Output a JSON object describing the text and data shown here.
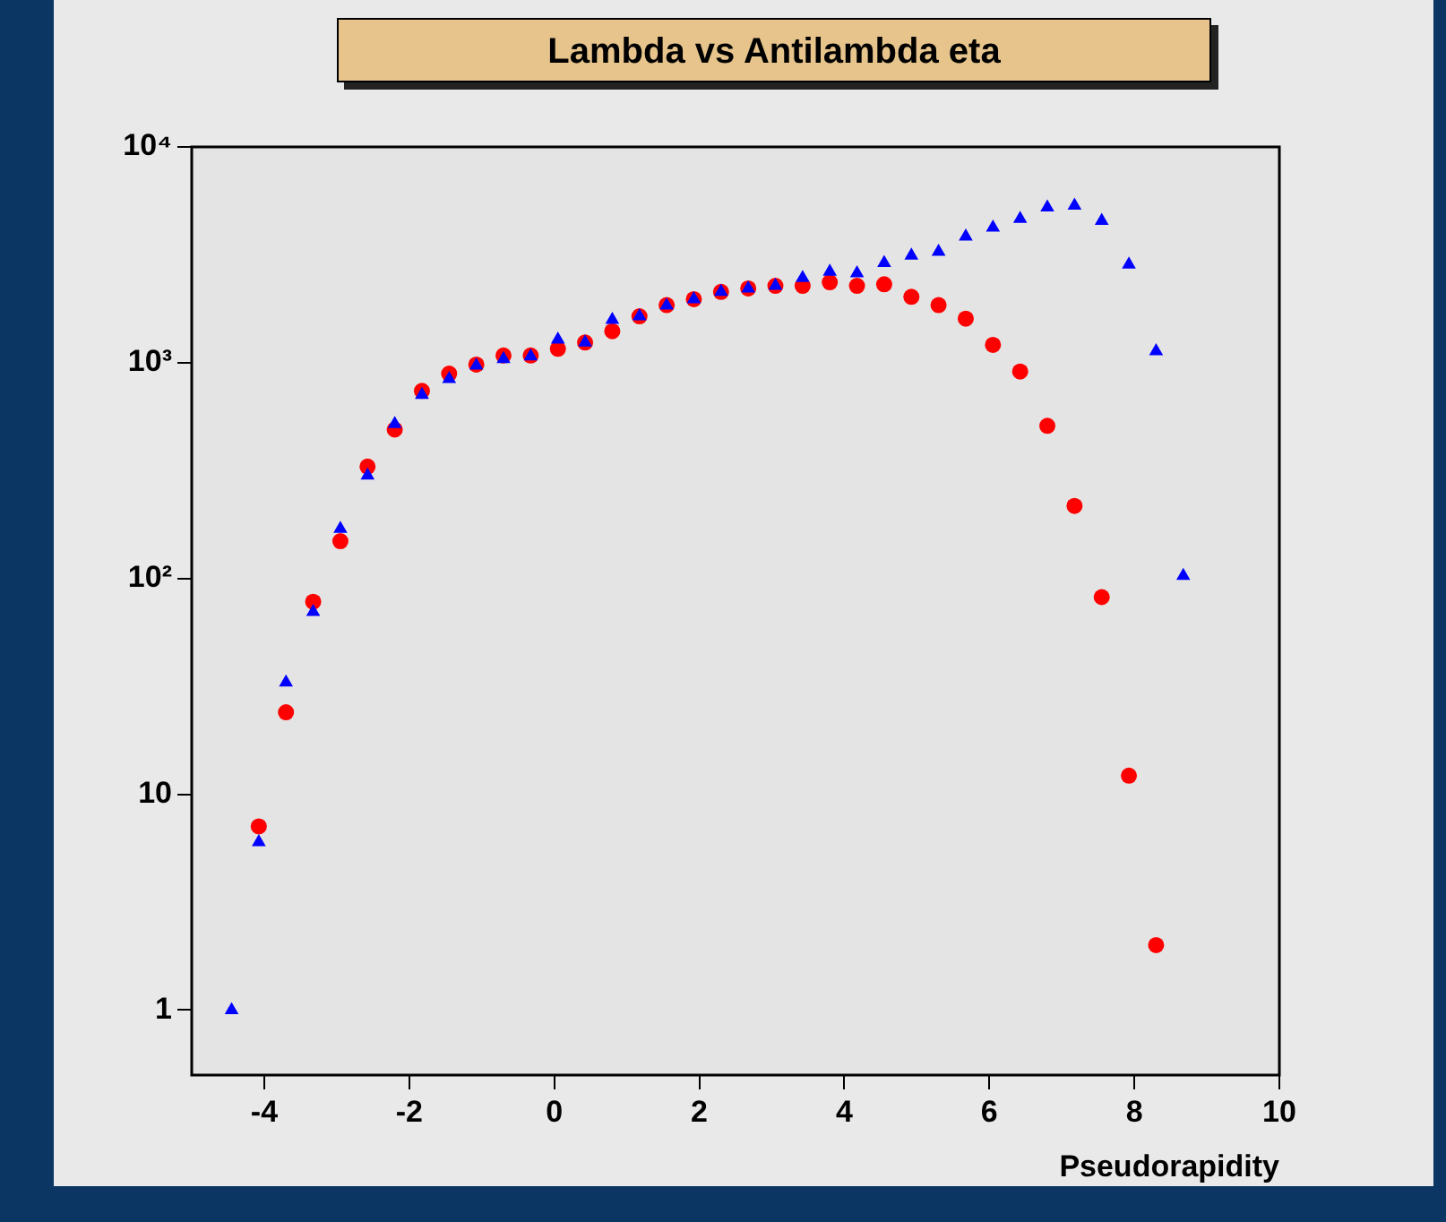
{
  "chart_data": {
    "type": "scatter",
    "title": "Lambda vs Antilambda eta",
    "xlabel": "Pseudorapidity",
    "x": [
      -4.45,
      -4.075,
      -3.7,
      -3.325,
      -2.95,
      -2.575,
      -2.2,
      -1.825,
      -1.45,
      -1.075,
      -0.7,
      -0.325,
      0.05,
      0.425,
      0.8,
      1.175,
      1.55,
      1.925,
      2.3,
      2.675,
      3.05,
      3.425,
      3.8,
      4.175,
      4.55,
      4.925,
      5.3,
      5.675,
      6.05,
      6.425,
      6.8,
      7.175,
      7.55,
      7.925,
      8.3,
      8.675
    ],
    "series": [
      {
        "color": "#0000ff",
        "marker": "triangle",
        "values": [
          1.0,
          6,
          33,
          70,
          170,
          300,
          520,
          710,
          840,
          970,
          1040,
          1070,
          1280,
          1240,
          1580,
          1640,
          1840,
          1970,
          2130,
          2210,
          2270,
          2470,
          2640,
          2600,
          2900,
          3140,
          3270,
          3840,
          4230,
          4640,
          5240,
          5350,
          4550,
          2850,
          1130,
          103
        ]
      },
      {
        "color": "#ff0000",
        "marker": "circle",
        "values": [
          null,
          7.1,
          24,
          78,
          149,
          330,
          490,
          740,
          890,
          980,
          1080,
          1080,
          1160,
          1240,
          1400,
          1640,
          1850,
          1970,
          2130,
          2210,
          2270,
          2270,
          2360,
          2270,
          2310,
          2020,
          1850,
          1600,
          1210,
          910,
          510,
          217,
          82,
          12.2,
          2.0,
          null
        ]
      }
    ],
    "xlim": [
      -5,
      10
    ],
    "xticks": [
      -4,
      -2,
      0,
      2,
      4,
      6,
      8,
      10
    ],
    "log": "y",
    "ylim": [
      0.5,
      10000
    ],
    "yticks": [
      1,
      10,
      {
        "value": 100,
        "label": "10²"
      },
      {
        "value": 1000,
        "label": "10³"
      },
      {
        "value": 10000,
        "label": "10⁴"
      }
    ],
    "grid": false,
    "legend": false
  }
}
